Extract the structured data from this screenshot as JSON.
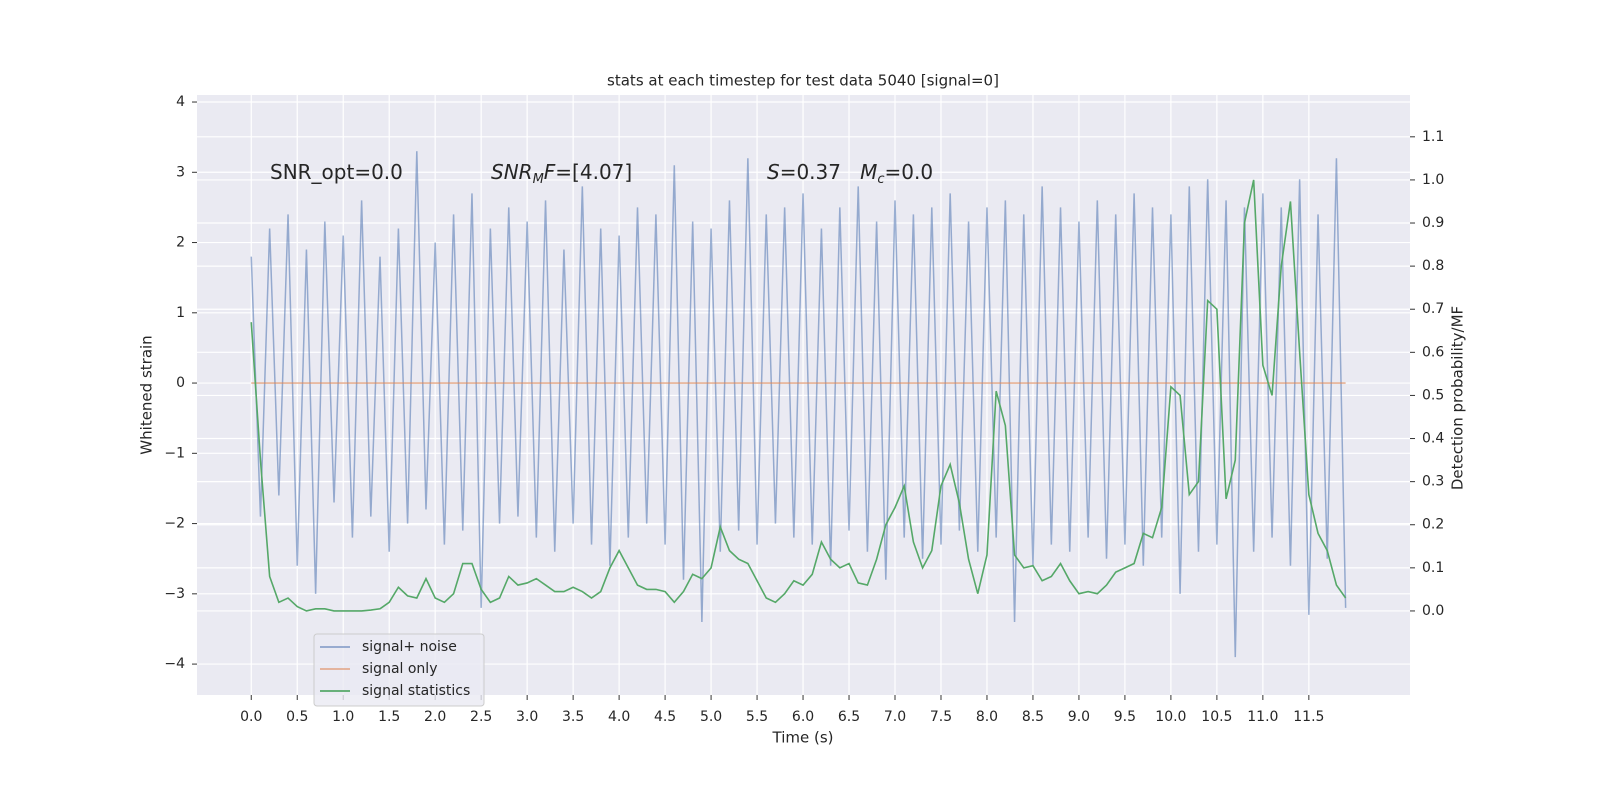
{
  "chart_data": {
    "type": "line",
    "title": "stats at each timestep for test data 5040 [signal=0]",
    "xlabel": "Time (s)",
    "ylabel": "Whitened strain",
    "y2label": "Detection probability/MF",
    "annotations": [
      {
        "parts": [
          {
            "text": "SNR_opt=0.0"
          }
        ]
      },
      {
        "parts": [
          {
            "text": "SNR",
            "italic": true
          },
          {
            "text": "M",
            "italic": true,
            "sub": true
          },
          {
            "text": "F",
            "italic": true
          },
          {
            "text": "=[4.07]"
          }
        ]
      },
      {
        "parts": [
          {
            "text": "S",
            "italic": true
          },
          {
            "text": "=0.37   "
          },
          {
            "text": "M",
            "italic": true
          },
          {
            "text": "c",
            "italic": true,
            "sub": true
          },
          {
            "text": "=0.0"
          }
        ]
      }
    ],
    "xlim": [
      -0.59,
      12.6
    ],
    "ylim": [
      -4.44,
      4.1
    ],
    "y2lim": [
      -0.195,
      1.197
    ],
    "xticks": [
      {
        "value": 0,
        "label": "0.0"
      },
      0.5,
      {
        "value": 1,
        "label": "1.0"
      },
      1.5,
      {
        "value": 2,
        "label": "2.0"
      },
      2.5,
      {
        "value": 3,
        "label": "3.0"
      },
      3.5,
      {
        "value": 4,
        "label": "4.0"
      },
      4.5,
      {
        "value": 5,
        "label": "5.0"
      },
      5.5,
      {
        "value": 6,
        "label": "6.0"
      },
      6.5,
      {
        "value": 7,
        "label": "7.0"
      },
      7.5,
      {
        "value": 8,
        "label": "8.0"
      },
      8.5,
      {
        "value": 9,
        "label": "9.0"
      },
      9.5,
      {
        "value": 10,
        "label": "10.0"
      },
      10.5,
      {
        "value": 11,
        "label": "11.0"
      },
      11.5
    ],
    "yticks": [
      {
        "value": -4,
        "label": "−4"
      },
      {
        "value": -3,
        "label": "−3"
      },
      {
        "value": -2,
        "label": "−2"
      },
      {
        "value": -1,
        "label": "−1"
      },
      0,
      1,
      2,
      3,
      4
    ],
    "y2ticks": [
      {
        "value": 0,
        "label": "0.0"
      },
      0.1,
      0.2,
      0.3,
      0.4,
      0.5,
      0.6,
      0.7,
      0.8,
      0.9,
      {
        "value": 1,
        "label": "1.0"
      },
      1.1
    ],
    "grid": true,
    "legend": "lower left",
    "x": [
      0,
      0.1,
      0.2,
      0.3,
      0.4,
      0.5,
      0.6,
      0.7,
      0.8,
      0.9,
      1,
      1.1,
      1.2,
      1.3,
      1.4,
      1.5,
      1.6,
      1.7,
      1.8,
      1.9,
      2,
      2.1,
      2.2,
      2.3,
      2.4,
      2.5,
      2.6,
      2.7,
      2.8,
      2.9,
      3,
      3.1,
      3.2,
      3.3,
      3.4,
      3.5,
      3.6,
      3.7,
      3.8,
      3.9,
      4,
      4.1,
      4.2,
      4.3,
      4.4,
      4.5,
      4.6,
      4.7,
      4.8,
      4.9,
      5,
      5.1,
      5.2,
      5.3,
      5.4,
      5.5,
      5.6,
      5.7,
      5.8,
      5.9,
      6,
      6.1,
      6.2,
      6.3,
      6.4,
      6.5,
      6.6,
      6.7,
      6.8,
      6.9,
      7,
      7.1,
      7.2,
      7.3,
      7.4,
      7.5,
      7.6,
      7.7,
      7.8,
      7.9,
      8,
      8.1,
      8.2,
      8.3,
      8.4,
      8.5,
      8.6,
      8.7,
      8.8,
      8.9,
      9,
      9.1,
      9.2,
      9.3,
      9.4,
      9.5,
      9.6,
      9.7,
      9.8,
      9.9,
      10,
      10.1,
      10.2,
      10.3,
      10.4,
      10.5,
      10.6,
      10.7,
      10.8,
      10.9,
      11,
      11.1,
      11.2,
      11.3,
      11.4,
      11.5,
      11.6,
      11.7,
      11.8,
      11.9
    ],
    "series": [
      {
        "name": "signal+ noise",
        "color": "#4c72b0",
        "values": [
          1.8,
          -1.9,
          2.2,
          -1.6,
          2.4,
          -2.6,
          1.9,
          -3.0,
          2.3,
          -1.7,
          2.1,
          -2.2,
          2.6,
          -1.9,
          1.8,
          -2.4,
          2.2,
          -2.0,
          3.3,
          -1.8,
          2.0,
          -2.3,
          2.4,
          -2.1,
          2.7,
          -3.2,
          2.2,
          -2.0,
          2.5,
          -1.9,
          2.3,
          -2.2,
          2.6,
          -2.4,
          1.9,
          -2.0,
          2.8,
          -2.3,
          2.2,
          -2.6,
          2.1,
          -2.2,
          2.5,
          -2.0,
          2.4,
          -2.3,
          3.1,
          -2.8,
          2.3,
          -3.4,
          2.2,
          -2.4,
          2.6,
          -2.1,
          3.2,
          -2.3,
          2.4,
          -2.0,
          2.5,
          -2.2,
          2.7,
          -2.3,
          2.2,
          -2.6,
          2.5,
          -2.1,
          2.8,
          -2.4,
          2.3,
          -2.8,
          2.6,
          -2.2,
          2.4,
          -2.5,
          2.5,
          -2.3,
          2.7,
          -2.1,
          2.3,
          -2.4,
          2.5,
          -2.2,
          2.6,
          -3.4,
          2.4,
          -2.6,
          2.8,
          -2.3,
          2.5,
          -2.4,
          2.3,
          -2.2,
          2.6,
          -2.5,
          2.4,
          -2.3,
          2.7,
          -2.6,
          2.5,
          -2.2,
          2.4,
          -3.0,
          2.8,
          -2.4,
          2.9,
          -2.3,
          2.6,
          -3.9,
          2.5,
          -2.4,
          2.7,
          -2.2,
          2.5,
          -2.6,
          2.9,
          -3.3,
          2.4,
          -2.5,
          3.2,
          -3.2
        ]
      },
      {
        "name": "signal only",
        "color": "#dd8452",
        "values": [
          0,
          0,
          0,
          0,
          0,
          0,
          0,
          0,
          0,
          0,
          0,
          0,
          0,
          0,
          0,
          0,
          0,
          0,
          0,
          0,
          0,
          0,
          0,
          0,
          0,
          0,
          0,
          0,
          0,
          0,
          0,
          0,
          0,
          0,
          0,
          0,
          0,
          0,
          0,
          0,
          0,
          0,
          0,
          0,
          0,
          0,
          0,
          0,
          0,
          0,
          0,
          0,
          0,
          0,
          0,
          0,
          0,
          0,
          0,
          0,
          0,
          0,
          0,
          0,
          0,
          0,
          0,
          0,
          0,
          0,
          0,
          0,
          0,
          0,
          0,
          0,
          0,
          0,
          0,
          0,
          0,
          0,
          0,
          0,
          0,
          0,
          0,
          0,
          0,
          0,
          0,
          0,
          0,
          0,
          0,
          0,
          0,
          0,
          0,
          0,
          0,
          0,
          0,
          0,
          0,
          0,
          0,
          0,
          0,
          0,
          0,
          0,
          0,
          0,
          0,
          0,
          0,
          0,
          0,
          0
        ]
      },
      {
        "name": "signal statistics",
        "color": "#55a868",
        "axis": "y2",
        "values": [
          0.67,
          0.35,
          0.08,
          0.02,
          0.03,
          0.01,
          0.0,
          0.005,
          0.005,
          0.0,
          0.0,
          0.0,
          0.0,
          0.002,
          0.005,
          0.02,
          0.055,
          0.035,
          0.03,
          0.075,
          0.03,
          0.02,
          0.04,
          0.11,
          0.11,
          0.05,
          0.02,
          0.03,
          0.08,
          0.06,
          0.065,
          0.075,
          0.06,
          0.045,
          0.045,
          0.055,
          0.045,
          0.03,
          0.045,
          0.1,
          0.14,
          0.1,
          0.06,
          0.05,
          0.05,
          0.045,
          0.02,
          0.045,
          0.085,
          0.075,
          0.1,
          0.195,
          0.14,
          0.12,
          0.11,
          0.07,
          0.03,
          0.02,
          0.04,
          0.07,
          0.06,
          0.085,
          0.16,
          0.12,
          0.1,
          0.11,
          0.065,
          0.06,
          0.12,
          0.2,
          0.24,
          0.29,
          0.16,
          0.1,
          0.14,
          0.29,
          0.34,
          0.25,
          0.12,
          0.04,
          0.13,
          0.51,
          0.43,
          0.13,
          0.1,
          0.105,
          0.07,
          0.08,
          0.11,
          0.07,
          0.04,
          0.045,
          0.04,
          0.06,
          0.09,
          0.1,
          0.11,
          0.18,
          0.17,
          0.24,
          0.52,
          0.5,
          0.27,
          0.3,
          0.72,
          0.7,
          0.26,
          0.35,
          0.9,
          1.0,
          0.57,
          0.5,
          0.8,
          0.95,
          0.6,
          0.27,
          0.18,
          0.14,
          0.06,
          0.03
        ]
      }
    ]
  }
}
